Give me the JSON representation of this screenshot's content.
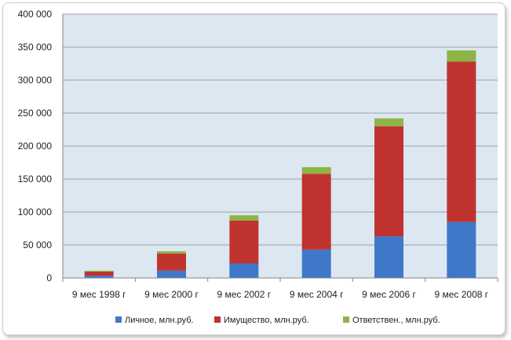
{
  "chart_data": {
    "type": "bar",
    "stacked": true,
    "categories": [
      "9 мес 1998 г",
      "9 мес 2000 г",
      "9 мес 2002 г",
      "9 мес 2004 г",
      "9 мес 2006 г",
      "9 мес 2008 г"
    ],
    "series": [
      {
        "name": "Личное, млн.руб.",
        "color": "#3f78c8",
        "values": [
          3500,
          11000,
          22000,
          43000,
          63000,
          85000
        ]
      },
      {
        "name": "Имущество, млн.руб.",
        "color": "#c0332e",
        "values": [
          6000,
          26000,
          65000,
          115000,
          167000,
          243000
        ]
      },
      {
        "name": "Ответствен., млн.руб.",
        "color": "#8db445",
        "values": [
          1500,
          3500,
          8000,
          10000,
          12000,
          17000
        ]
      }
    ],
    "ylim": [
      0,
      400000
    ],
    "yticks": [
      0,
      50000,
      100000,
      150000,
      200000,
      250000,
      300000,
      350000,
      400000
    ],
    "ytick_labels": [
      "0",
      "50 000",
      "100 000",
      "150 000",
      "200 000",
      "250 000",
      "300 000",
      "350 000",
      "400 000"
    ],
    "grid": true,
    "legend_position": "bottom",
    "plot_background": "#dde7f1"
  }
}
